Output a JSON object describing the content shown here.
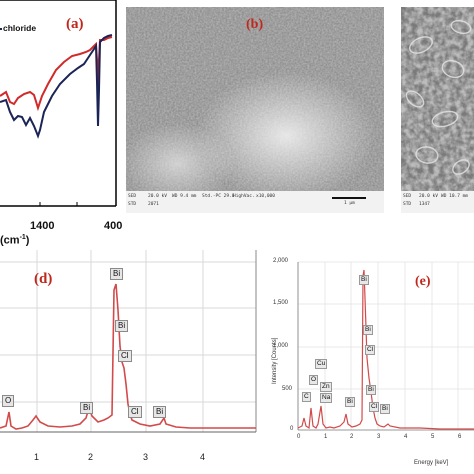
{
  "panel_a": {
    "label": "(a)",
    "legend_fragment": "chloride",
    "x_ticks": [
      "1400",
      "400"
    ],
    "x_unit_fragment": "(cm",
    "x_unit_tail": "-1",
    "x_unit_close": ")"
  },
  "panel_b": {
    "label": "(b)",
    "info": {
      "detector": "SED",
      "voltage": "20.0 kV",
      "wd": "WD 9.4 mm",
      "spot": "Std.-PC 29.0",
      "vac": "HighVac.",
      "mag": "x10,000",
      "scale": "1 μm",
      "std": "STD",
      "std_num": "2071"
    }
  },
  "panel_c": {
    "info": {
      "detector": "SED",
      "voltage": "20.0 kV",
      "wd": "WD 10.7 mm",
      "std": "STD",
      "std_num": "1347"
    }
  },
  "panel_d": {
    "label": "(d)",
    "peaks": [
      "Bi",
      "Bi",
      "Cl",
      "O",
      "Bi",
      "Cl",
      "Bi"
    ],
    "x_ticks": [
      "1",
      "2",
      "3",
      "4"
    ]
  },
  "panel_e": {
    "label": "(e)",
    "y_axis_label": "Intensity [Counts]",
    "x_axis_label": "Energy [keV]",
    "y_ticks": [
      "2,000",
      "1,500",
      "1,000",
      "500",
      "0"
    ],
    "x_ticks": [
      "0",
      "1",
      "2",
      "3",
      "4",
      "5",
      "6"
    ],
    "peaks": [
      "Bi",
      "Bi",
      "Cl",
      "Cu",
      "O",
      "Zn",
      "C",
      "Na",
      "Bi",
      "Bi",
      "Cl",
      "Bi"
    ]
  },
  "colors": {
    "label": "#c0271c",
    "ftir_red": "#d12a2a",
    "ftir_navy": "#1b2456",
    "eds_line": "#d24a4a"
  }
}
